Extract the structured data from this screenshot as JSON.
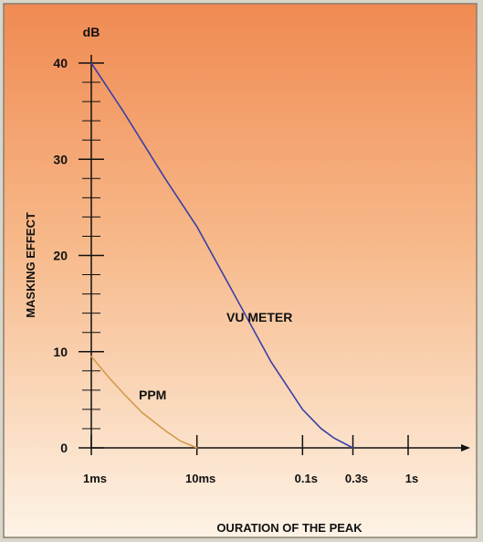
{
  "chart_data": {
    "type": "line",
    "title": "",
    "ylabel": "MASKING EFFECT",
    "xlabel": "OURATION OF THE PEAK",
    "y_unit": "dB",
    "x_scale": "log",
    "x_range": [
      "1ms",
      "1s"
    ],
    "y_range": [
      0,
      40
    ],
    "y_ticks": [
      {
        "value": 0,
        "label": "0"
      },
      {
        "value": 10,
        "label": "10"
      },
      {
        "value": 20,
        "label": "20"
      },
      {
        "value": 30,
        "label": "30"
      },
      {
        "value": 40,
        "label": "40"
      }
    ],
    "x_ticks": [
      {
        "value": 0.001,
        "label": "1ms"
      },
      {
        "value": 0.01,
        "label": "10ms"
      },
      {
        "value": 0.1,
        "label": "0.1s"
      },
      {
        "value": 0.3,
        "label": "0.3s"
      },
      {
        "value": 1,
        "label": "1s"
      }
    ],
    "series": [
      {
        "name": "VU METER",
        "color": "#3a3fa6",
        "x": [
          0.001,
          0.002,
          0.005,
          0.01,
          0.02,
          0.05,
          0.1,
          0.15,
          0.2,
          0.3
        ],
        "y": [
          40,
          35,
          28,
          23,
          17,
          9,
          4,
          2,
          1,
          0
        ]
      },
      {
        "name": "PPM",
        "color": "#d49b4a",
        "x": [
          0.001,
          0.0015,
          0.002,
          0.003,
          0.005,
          0.007,
          0.01
        ],
        "y": [
          9.5,
          7.2,
          5.7,
          3.7,
          1.8,
          0.7,
          0
        ]
      }
    ]
  },
  "colors": {
    "background": "#d9d6cc",
    "panel_top": "#f08a52",
    "panel_bottom": "#fdf3e6",
    "axis": "#111111"
  }
}
